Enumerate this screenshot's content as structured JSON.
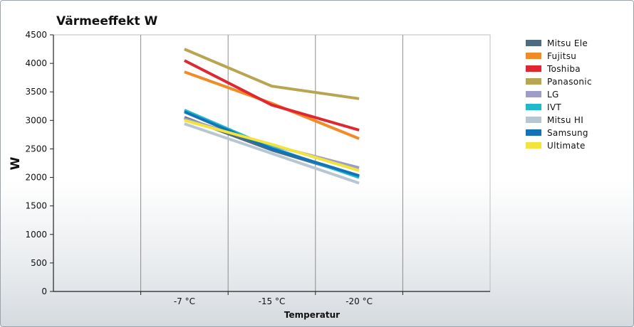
{
  "chart_data": {
    "type": "line",
    "title": "Värmeeffekt W",
    "xlabel": "Temperatur",
    "ylabel": "W",
    "categories": [
      "",
      "-7 °C",
      "-15 °C",
      "-20 °C",
      ""
    ],
    "ylim": [
      0,
      4500
    ],
    "yticks": [
      0,
      500,
      1000,
      1500,
      2000,
      2500,
      3000,
      3500,
      4000,
      4500
    ],
    "legend_position": "right",
    "grid": "vertical",
    "series": [
      {
        "name": "Mitsu Ele",
        "color": "#4f6b7f",
        "values": [
          null,
          3050,
          2480,
          2020,
          null
        ]
      },
      {
        "name": "Fujitsu",
        "color": "#f28a25",
        "values": [
          null,
          3850,
          3300,
          2680,
          null
        ]
      },
      {
        "name": "Toshiba",
        "color": "#e0272f",
        "values": [
          null,
          4050,
          3270,
          2830,
          null
        ]
      },
      {
        "name": "Panasonic",
        "color": "#b8a552",
        "values": [
          null,
          4250,
          3600,
          3380,
          null
        ]
      },
      {
        "name": "LG",
        "color": "#9e9cc8",
        "values": [
          null,
          3030,
          2560,
          2170,
          null
        ]
      },
      {
        "name": "IVT",
        "color": "#1fb9cc",
        "values": [
          null,
          3180,
          2520,
          2000,
          null
        ]
      },
      {
        "name": "Mitsu HI",
        "color": "#b7c6d1",
        "values": [
          null,
          2940,
          2420,
          1900,
          null
        ]
      },
      {
        "name": "Samsung",
        "color": "#1273b8",
        "values": [
          null,
          3150,
          2500,
          2030,
          null
        ]
      },
      {
        "name": "Ultimate",
        "color": "#f2e43a",
        "values": [
          null,
          3000,
          2580,
          2120,
          null
        ]
      }
    ]
  }
}
